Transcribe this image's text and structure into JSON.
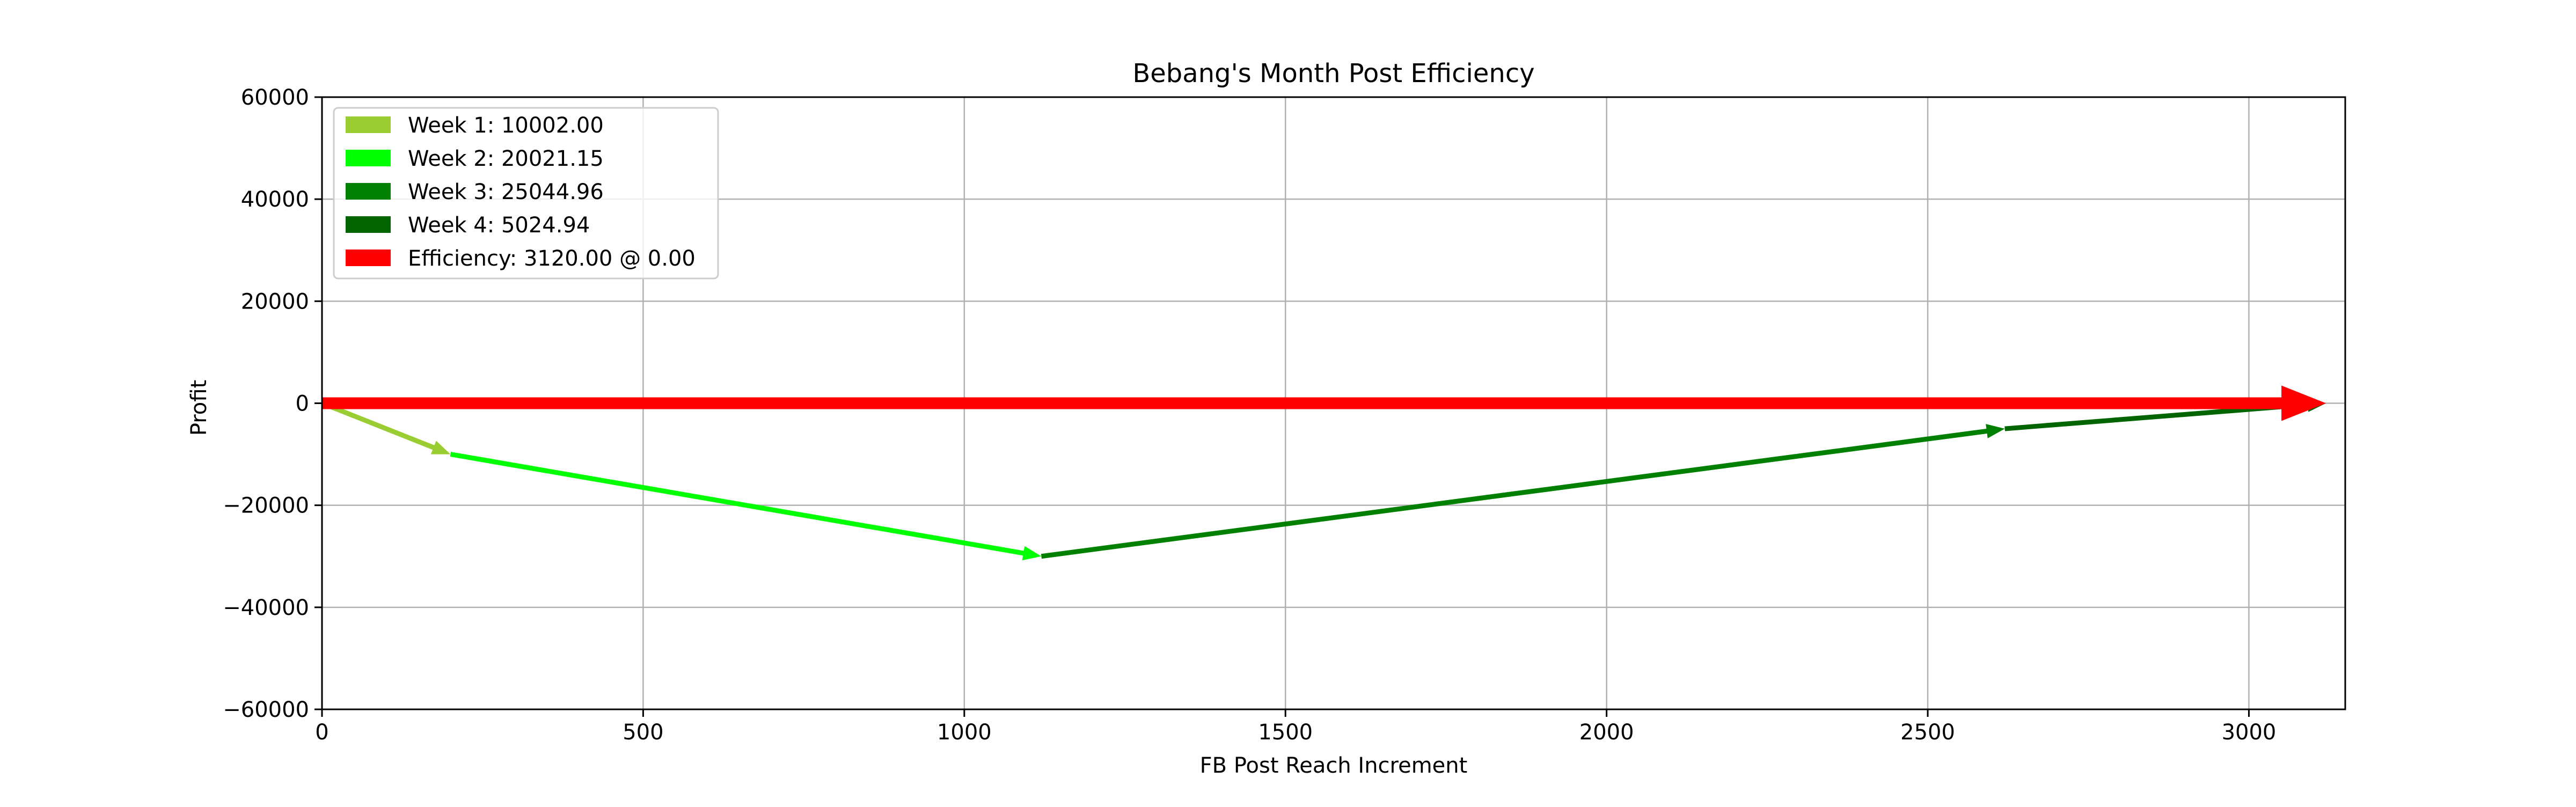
{
  "chart_data": {
    "type": "vector",
    "title": "Bebang's Month Post Efficiency",
    "xlabel": "FB Post Reach Increment",
    "ylabel": "Profit",
    "xlim": [
      0,
      3150
    ],
    "ylim": [
      -60000,
      60000
    ],
    "x_ticks": [
      0,
      500,
      1000,
      1500,
      2000,
      2500,
      3000
    ],
    "y_ticks": [
      -60000,
      -40000,
      -20000,
      0,
      20000,
      40000,
      60000
    ],
    "x_tick_labels": [
      "0",
      "500",
      "1000",
      "1500",
      "2000",
      "2500",
      "3000"
    ],
    "y_tick_labels": [
      "−60000",
      "−40000",
      "−20000",
      "0",
      "20000",
      "40000",
      "60000"
    ],
    "grid": true,
    "legend_position": "top-left",
    "series": [
      {
        "name": "Week 1: 10002.00",
        "color": "#9acd32",
        "start": [
          0,
          0
        ],
        "end": [
          200,
          -10000
        ]
      },
      {
        "name": "Week 2: 20021.15",
        "color": "#00ff00",
        "start": [
          200,
          -10000
        ],
        "end": [
          1120,
          -30000
        ]
      },
      {
        "name": "Week 3: 25044.96",
        "color": "#008000",
        "start": [
          1120,
          -30000
        ],
        "end": [
          2620,
          -5000
        ]
      },
      {
        "name": "Week 4: 5024.94",
        "color": "#006400",
        "start": [
          2620,
          -5000
        ],
        "end": [
          3120,
          0
        ]
      },
      {
        "name": "Efficiency: 3120.00 @ 0.00",
        "color": "#ff0000",
        "start": [
          0,
          0
        ],
        "end": [
          3120,
          0
        ]
      }
    ]
  }
}
